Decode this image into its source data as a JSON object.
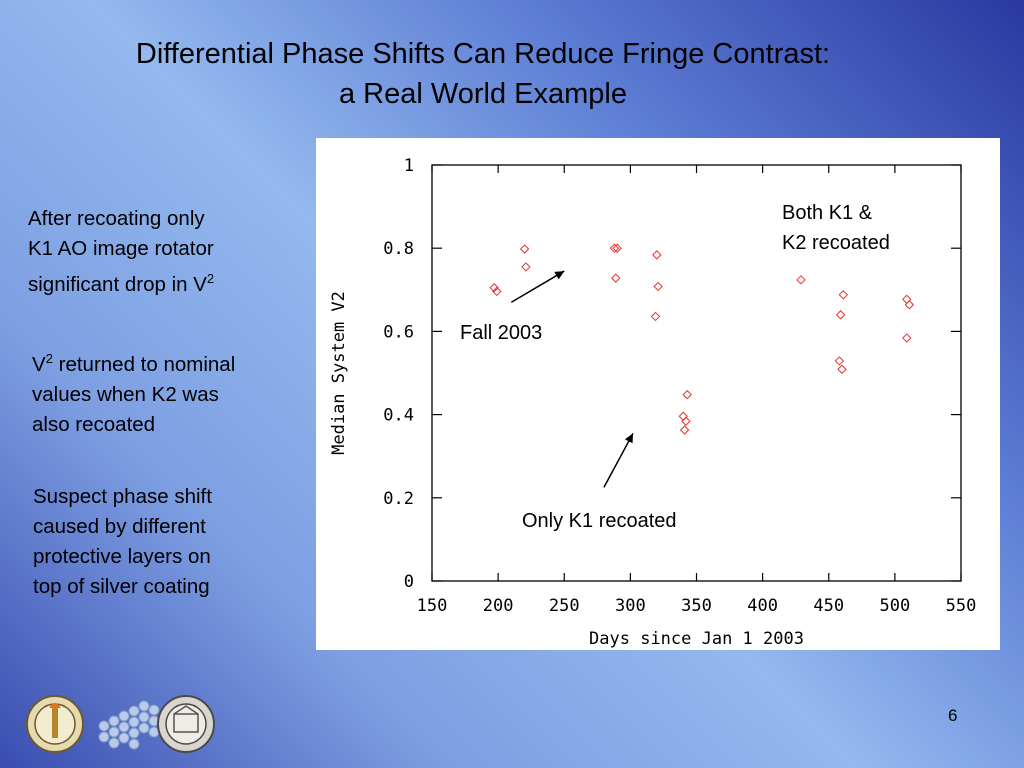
{
  "slide": {
    "title_line1": "Differential Phase Shifts Can Reduce Fringe Contrast:",
    "title_line2": "a Real World Example",
    "page_number": "6"
  },
  "bullets": {
    "b1": {
      "line1": "After recoating only",
      "line2": "K1 AO image rotator",
      "line3_pre": "significant drop in V",
      "line3_sup": "2"
    },
    "b2": {
      "line1_pre": "V",
      "line1_sup": "2",
      "line1_post": " returned to nominal",
      "line2": "values when K2 was",
      "line3": "also recoated"
    },
    "b3": {
      "line1": "Suspect phase shift",
      "line2": "caused by different",
      "line3": "protective layers on",
      "line4": "top of silver coating"
    }
  },
  "annotations": {
    "both_line1": "Both K1 &",
    "both_line2": "K2 recoated",
    "fall": "Fall 2003",
    "only_k1": "Only K1 recoated"
  },
  "colors": {
    "marker": "#e8322c",
    "axis": "#000000",
    "panel": "#ffffff"
  },
  "chart_data": {
    "type": "scatter",
    "title": "",
    "xlabel": "Days since Jan 1 2003",
    "ylabel": "Median System V2",
    "xlim": [
      150,
      550
    ],
    "ylim": [
      0,
      1
    ],
    "xticks": [
      150,
      200,
      250,
      300,
      350,
      400,
      450,
      500,
      550
    ],
    "xtick_labels": [
      "150",
      "200",
      "250",
      "300",
      "350",
      "400",
      "450",
      "500",
      "550"
    ],
    "yticks": [
      0,
      0.2,
      0.4,
      0.6,
      0.8,
      1
    ],
    "ytick_labels": [
      "0",
      "0.2",
      "0.4",
      "0.6",
      "0.8",
      "1"
    ],
    "grid": false,
    "marker": "diamond",
    "points": [
      {
        "x": 197,
        "y": 0.705
      },
      {
        "x": 199,
        "y": 0.696
      },
      {
        "x": 220,
        "y": 0.798
      },
      {
        "x": 221,
        "y": 0.755
      },
      {
        "x": 288,
        "y": 0.8
      },
      {
        "x": 290,
        "y": 0.8
      },
      {
        "x": 289,
        "y": 0.728
      },
      {
        "x": 320,
        "y": 0.784
      },
      {
        "x": 321,
        "y": 0.708
      },
      {
        "x": 319,
        "y": 0.636
      },
      {
        "x": 343,
        "y": 0.448
      },
      {
        "x": 340,
        "y": 0.396
      },
      {
        "x": 342,
        "y": 0.384
      },
      {
        "x": 341,
        "y": 0.363
      },
      {
        "x": 429,
        "y": 0.724
      },
      {
        "x": 461,
        "y": 0.688
      },
      {
        "x": 459,
        "y": 0.64
      },
      {
        "x": 458,
        "y": 0.529
      },
      {
        "x": 460,
        "y": 0.509
      },
      {
        "x": 509,
        "y": 0.677
      },
      {
        "x": 511,
        "y": 0.664
      },
      {
        "x": 509,
        "y": 0.584
      }
    ],
    "arrows": [
      {
        "from": [
          210,
          0.67
        ],
        "to": [
          250,
          0.745
        ]
      },
      {
        "from": [
          280,
          0.225
        ],
        "to": [
          302,
          0.355
        ]
      }
    ]
  }
}
